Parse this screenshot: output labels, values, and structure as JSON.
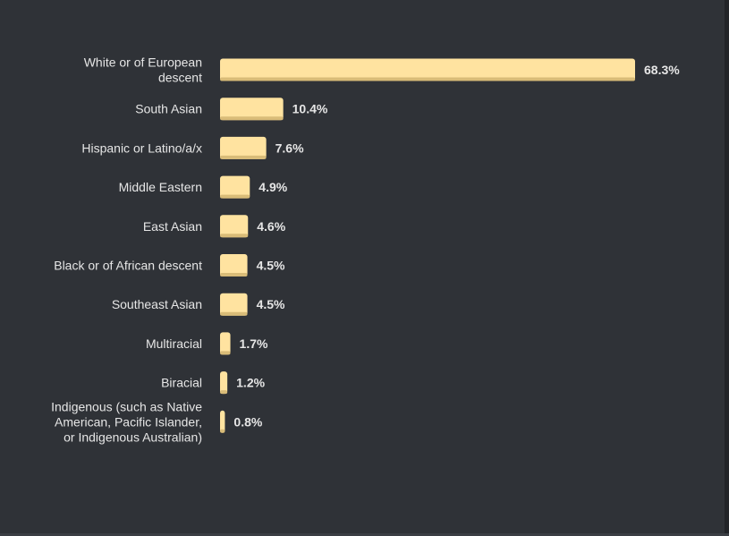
{
  "chart_data": {
    "type": "bar",
    "orientation": "horizontal",
    "categories": [
      [
        "White or of European",
        "descent"
      ],
      [
        "South Asian"
      ],
      [
        "Hispanic or Latino/a/x"
      ],
      [
        "Middle Eastern"
      ],
      [
        "East Asian"
      ],
      [
        "Black or of African descent"
      ],
      [
        "Southeast Asian"
      ],
      [
        "Multiracial"
      ],
      [
        "Biracial"
      ],
      [
        "Indigenous (such as Native",
        "American, Pacific Islander,",
        "or Indigenous Australian)"
      ]
    ],
    "values": [
      68.3,
      10.4,
      7.6,
      4.9,
      4.6,
      4.5,
      4.5,
      1.7,
      1.2,
      0.8
    ],
    "value_labels": [
      "68.3%",
      "10.4%",
      "7.6%",
      "4.9%",
      "4.6%",
      "4.5%",
      "4.5%",
      "1.7%",
      "1.2%",
      "0.8%"
    ],
    "xlim": [
      0,
      68.3
    ],
    "grid": false,
    "colors": {
      "bar": "#ffe3a0",
      "bar_shade": "#d9bc78",
      "background": "#2f3237",
      "text": "#e6e6e6"
    }
  }
}
